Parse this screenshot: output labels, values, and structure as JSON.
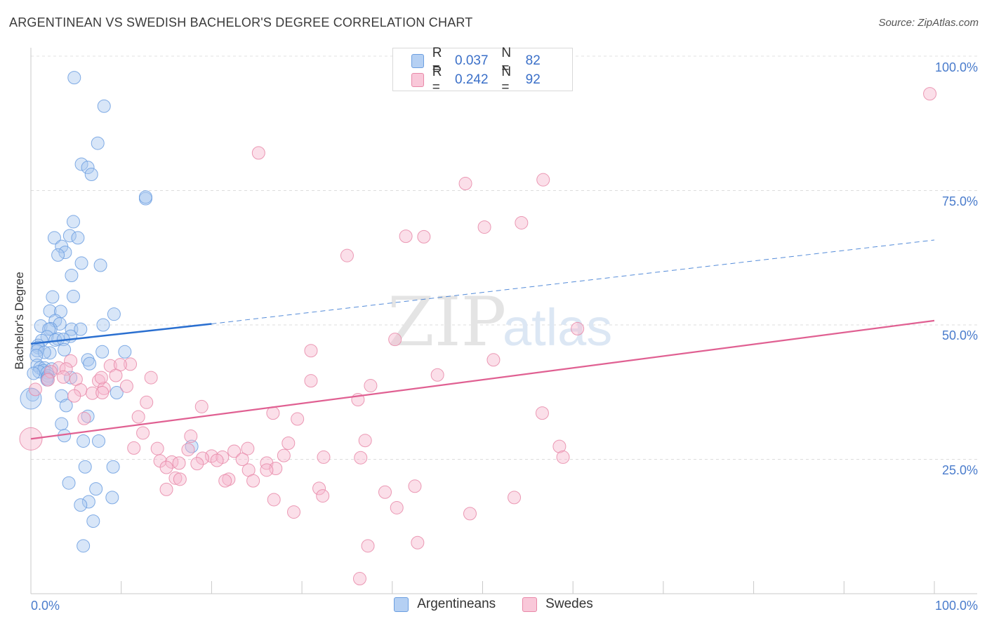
{
  "chart_data": {
    "type": "scatter",
    "title": "ARGENTINEAN VS SWEDISH BACHELOR'S DEGREE CORRELATION CHART",
    "source": "Source: ZipAtlas.com",
    "xlabel": "",
    "ylabel": "Bachelor's Degree",
    "xlim": [
      0,
      100
    ],
    "ylim": [
      0,
      100
    ],
    "x_tick_labels": [
      "0.0%",
      "100.0%"
    ],
    "y_tick_labels": [
      "25.0%",
      "50.0%",
      "75.0%",
      "100.0%"
    ],
    "y_ticks": [
      25,
      50,
      75,
      100
    ],
    "watermark": "ZIPatlas",
    "legend_top": [
      {
        "r_label": "R =",
        "r_value": "0.037",
        "n_label": "N =",
        "n_value": "82"
      },
      {
        "r_label": "R =",
        "r_value": "0.242",
        "n_label": "N =",
        "n_value": "92"
      }
    ],
    "series": [
      {
        "name": "Argentineans",
        "color": "#a9c8ef",
        "stroke": "#6b9ee0",
        "trend_color": "#2a6fd0",
        "trend": {
          "x0": 0,
          "y0": 46.5,
          "x1": 20,
          "y1": 50.2,
          "dash_x1": 100,
          "dash_y1": 65.8
        },
        "points": [
          [
            4.8,
            96
          ],
          [
            8.1,
            90.7
          ],
          [
            7.4,
            83.8
          ],
          [
            5.6,
            79.9
          ],
          [
            6.3,
            79.3
          ],
          [
            6.7,
            78
          ],
          [
            12.7,
            73.5
          ],
          [
            12.7,
            73.8
          ],
          [
            4.7,
            69.2
          ],
          [
            2.6,
            66.2
          ],
          [
            4.3,
            66.6
          ],
          [
            5.2,
            66.2
          ],
          [
            3.4,
            64.6
          ],
          [
            3.8,
            63.5
          ],
          [
            3.0,
            63
          ],
          [
            5.6,
            61.5
          ],
          [
            7.7,
            61.1
          ],
          [
            4.5,
            59.2
          ],
          [
            2.4,
            55.2
          ],
          [
            4.7,
            55.3
          ],
          [
            2.1,
            52.6
          ],
          [
            3.3,
            52.5
          ],
          [
            9.2,
            52
          ],
          [
            2.7,
            50.8
          ],
          [
            3.2,
            50.2
          ],
          [
            8.0,
            50
          ],
          [
            1.1,
            49.8
          ],
          [
            2.2,
            49.3
          ],
          [
            2.0,
            49.2
          ],
          [
            4.5,
            49.2
          ],
          [
            5.5,
            49.2
          ],
          [
            4.4,
            47.9
          ],
          [
            1.8,
            47.8
          ],
          [
            3.0,
            47.4
          ],
          [
            2.7,
            47.2
          ],
          [
            1.2,
            47.1
          ],
          [
            3.6,
            47.3
          ],
          [
            0.8,
            46.2
          ],
          [
            0.8,
            45.8
          ],
          [
            0.7,
            45.2
          ],
          [
            3.7,
            45.4
          ],
          [
            7.9,
            45
          ],
          [
            10.4,
            45
          ],
          [
            2.1,
            44.8
          ],
          [
            1.5,
            44.9
          ],
          [
            0.6,
            44.3
          ],
          [
            6.3,
            43.5
          ],
          [
            6.5,
            42.8
          ],
          [
            0.7,
            42.5
          ],
          [
            1.0,
            42
          ],
          [
            1.5,
            42
          ],
          [
            2.3,
            41.8
          ],
          [
            1.4,
            41.5
          ],
          [
            0.9,
            41.3
          ],
          [
            1.8,
            41.1
          ],
          [
            0.3,
            41
          ],
          [
            1.9,
            40.5
          ],
          [
            1.8,
            40.1
          ],
          [
            4.4,
            40.2
          ],
          [
            1.8,
            39.8
          ],
          [
            9.5,
            37.4
          ],
          [
            0.2,
            37
          ],
          [
            3.4,
            36.8
          ],
          [
            3.9,
            35
          ],
          [
            6.3,
            33
          ],
          [
            3.4,
            31.6
          ],
          [
            3.7,
            29.4
          ],
          [
            7.5,
            28.4
          ],
          [
            5.8,
            28.4
          ],
          [
            17.8,
            27.4
          ],
          [
            6.0,
            23.6
          ],
          [
            9.1,
            23.6
          ],
          [
            4.2,
            20.6
          ],
          [
            7.2,
            19.5
          ],
          [
            9.0,
            17.9
          ],
          [
            6.4,
            17.1
          ],
          [
            5.5,
            16.5
          ],
          [
            6.9,
            13.5
          ],
          [
            5.8,
            8.9
          ],
          [
            0.0,
            36.3
          ]
        ],
        "sizes": [
          18,
          18,
          18,
          18,
          18,
          18,
          18,
          18,
          18,
          18,
          18,
          18,
          18,
          18,
          18,
          18,
          18,
          18,
          18,
          18,
          18,
          18,
          18,
          18,
          18,
          18,
          18,
          18,
          18,
          18,
          18,
          18,
          18,
          18,
          18,
          18,
          18,
          18,
          18,
          18,
          18,
          18,
          18,
          18,
          18,
          18,
          18,
          18,
          18,
          18,
          18,
          18,
          18,
          18,
          18,
          18,
          18,
          18,
          18,
          18,
          18,
          18,
          18,
          18,
          18,
          18,
          18,
          18,
          18,
          18,
          18,
          18,
          18,
          18,
          18,
          18,
          18,
          18,
          18,
          30
        ]
      },
      {
        "name": "Swedes",
        "color": "#f7b9cf",
        "stroke": "#e888a8",
        "trend_color": "#e06092",
        "trend": {
          "x0": 0,
          "y0": 28.8,
          "x1": 100,
          "y1": 50.8
        },
        "points": [
          [
            99.5,
            93
          ],
          [
            25.2,
            82
          ],
          [
            48.1,
            76.3
          ],
          [
            56.7,
            77
          ],
          [
            50.2,
            68.2
          ],
          [
            54.3,
            69
          ],
          [
            41.5,
            66.5
          ],
          [
            43.5,
            66.4
          ],
          [
            35.0,
            62.9
          ],
          [
            60.5,
            49.3
          ],
          [
            40.3,
            47.3
          ],
          [
            31.0,
            45.2
          ],
          [
            51.2,
            43.5
          ],
          [
            11.0,
            42.7
          ],
          [
            8.8,
            42.4
          ],
          [
            4.4,
            43.3
          ],
          [
            3.1,
            42
          ],
          [
            3.9,
            41.8
          ],
          [
            2.2,
            41.3
          ],
          [
            9.9,
            42.6
          ],
          [
            45.0,
            40.7
          ],
          [
            9.4,
            40.6
          ],
          [
            13.3,
            40.2
          ],
          [
            31.0,
            39.6
          ],
          [
            5.0,
            39.9
          ],
          [
            7.5,
            39.6
          ],
          [
            1.9,
            39.8
          ],
          [
            37.6,
            38.7
          ],
          [
            10.6,
            38.6
          ],
          [
            8.1,
            38.2
          ],
          [
            0.5,
            38
          ],
          [
            5.5,
            37.9
          ],
          [
            6.8,
            37.3
          ],
          [
            7.9,
            37.4
          ],
          [
            4.8,
            36.8
          ],
          [
            36.2,
            36.1
          ],
          [
            12.8,
            35.6
          ],
          [
            18.9,
            34.8
          ],
          [
            26.8,
            33.6
          ],
          [
            56.6,
            33.6
          ],
          [
            29.5,
            32.5
          ],
          [
            5.9,
            32.6
          ],
          [
            11.9,
            32.9
          ],
          [
            12.4,
            29.9
          ],
          [
            17.7,
            29.3
          ],
          [
            28.5,
            28
          ],
          [
            37.0,
            28.5
          ],
          [
            58.5,
            27.4
          ],
          [
            11.4,
            27.1
          ],
          [
            14.0,
            27
          ],
          [
            24.0,
            27
          ],
          [
            17.4,
            26.8
          ],
          [
            22.5,
            26.5
          ],
          [
            28.0,
            25.7
          ],
          [
            20.0,
            25.6
          ],
          [
            21.2,
            25.4
          ],
          [
            32.4,
            25.4
          ],
          [
            36.5,
            25.3
          ],
          [
            58.9,
            25.4
          ],
          [
            19.0,
            25.2
          ],
          [
            20.6,
            24.8
          ],
          [
            23.4,
            25
          ],
          [
            14.3,
            24.7
          ],
          [
            15.6,
            24.5
          ],
          [
            16.4,
            24.3
          ],
          [
            18.4,
            24.2
          ],
          [
            26.1,
            24.3
          ],
          [
            15.0,
            23.5
          ],
          [
            27.1,
            23.3
          ],
          [
            24.1,
            23
          ],
          [
            26.1,
            23
          ],
          [
            21.9,
            21.3
          ],
          [
            16.0,
            21.5
          ],
          [
            21.5,
            21
          ],
          [
            24.6,
            21
          ],
          [
            42.5,
            20
          ],
          [
            31.9,
            19.6
          ],
          [
            15.0,
            19.4
          ],
          [
            39.2,
            18.9
          ],
          [
            32.3,
            18.2
          ],
          [
            53.5,
            17.9
          ],
          [
            26.9,
            17.5
          ],
          [
            40.5,
            16
          ],
          [
            29.1,
            15.2
          ],
          [
            48.6,
            14.9
          ],
          [
            42.8,
            9.5
          ],
          [
            37.3,
            8.9
          ],
          [
            36.4,
            2.8
          ],
          [
            0.0,
            28.8
          ],
          [
            16.5,
            21.3
          ],
          [
            7.8,
            40.2
          ],
          [
            3.6,
            40.3
          ]
        ],
        "sizes": [
          18,
          18,
          18,
          18,
          18,
          18,
          18,
          18,
          18,
          18,
          18,
          18,
          18,
          18,
          18,
          18,
          18,
          18,
          18,
          18,
          18,
          18,
          18,
          18,
          18,
          18,
          18,
          18,
          18,
          18,
          18,
          18,
          18,
          18,
          18,
          18,
          18,
          18,
          18,
          18,
          18,
          18,
          18,
          18,
          18,
          18,
          18,
          18,
          18,
          18,
          18,
          18,
          18,
          18,
          18,
          18,
          18,
          18,
          18,
          18,
          18,
          18,
          18,
          18,
          18,
          18,
          18,
          18,
          18,
          18,
          18,
          18,
          18,
          18,
          18,
          18,
          18,
          18,
          18,
          18,
          18,
          18,
          18,
          18,
          18,
          18,
          18,
          18,
          32,
          18,
          18,
          18
        ]
      }
    ]
  }
}
